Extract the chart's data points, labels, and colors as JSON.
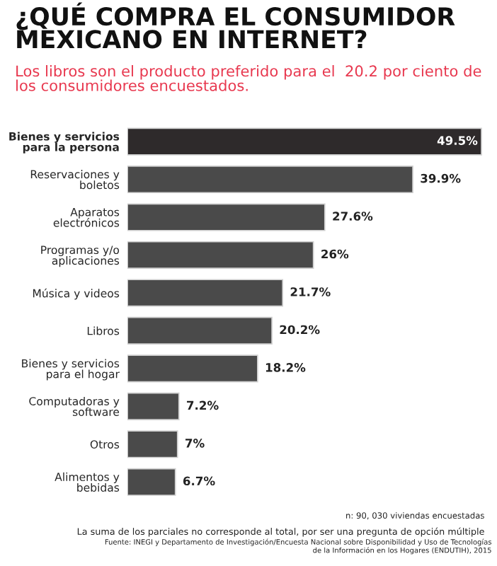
{
  "chart_data": {
    "type": "bar",
    "orientation": "horizontal",
    "title": "¿QUÉ COMPRA EL CONSUMIDOR MEXICANO EN INTERNET?",
    "subtitle": "Los libros son el producto preferido para el  20.2 por ciento de los consumidores encuestados.",
    "categories": [
      "Bienes y servicios para la persona",
      "Reservaciones y boletos",
      "Aparatos electrónicos",
      "Programas y/o aplicaciones",
      "Música y videos",
      "Libros",
      "Bienes y servicios para el hogar",
      "Computadoras y software",
      "Otros",
      "Alimentos y bebidas"
    ],
    "values": [
      49.5,
      39.9,
      27.6,
      26,
      21.7,
      20.2,
      18.2,
      7.2,
      7,
      6.7
    ],
    "value_labels": [
      "49.5%",
      "39.9%",
      "27.6%",
      "26%",
      "21.7%",
      "20.2%",
      "18.2%",
      "7.2%",
      "7%",
      "6.7%"
    ],
    "colors": [
      "#2e2a2b",
      "#4a4a4a",
      "#4a4a4a",
      "#4a4a4a",
      "#4a4a4a",
      "#4a4a4a",
      "#4a4a4a",
      "#4a4a4a",
      "#4a4a4a",
      "#4a4a4a"
    ],
    "tick_labels": "y",
    "annotations": [
      "n: 90, 030 viviendas encuestadas",
      "La suma de los parciales no corresponde al total, por ser una pregunta de opción múltiple",
      "Fuente: INEGI y Departamento de Investigación/Encuesta Nacional sobre Disponibilidad y Uso de Tecnologías de la Información en los Hogares (ENDUTIH), 2015"
    ]
  }
}
